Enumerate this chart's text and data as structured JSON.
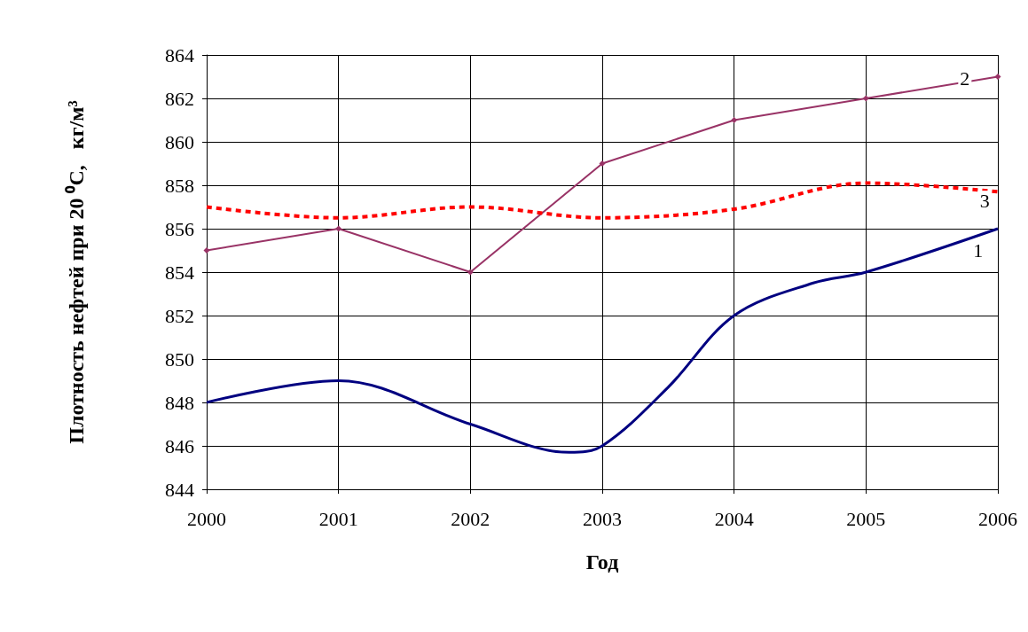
{
  "chart_data": {
    "type": "line",
    "xlabel": "Год",
    "ylabel": "Плотность нефтей при 20 ⁰С,   кг/м³",
    "xlim": [
      2000,
      2006
    ],
    "xticks": [
      2000,
      2001,
      2002,
      2003,
      2004,
      2005,
      2006
    ],
    "ylim": [
      844,
      864
    ],
    "yticks": [
      844,
      846,
      848,
      850,
      852,
      854,
      856,
      858,
      860,
      862,
      864
    ],
    "grid": true,
    "series": [
      {
        "color": "#000080",
        "marker": "none",
        "line_style": "solid",
        "x": [
          2000,
          2001,
          2002,
          2002.75,
          2003,
          2003.5,
          2004,
          2004.6,
          2005,
          2006
        ],
        "values": [
          848,
          849,
          847,
          845.7,
          846,
          848.7,
          852,
          853.5,
          854,
          856
        ]
      },
      {
        "color": "#993366",
        "marker": "diamond",
        "line_style": "solid",
        "x": [
          2000,
          2001,
          2002,
          2003,
          2004,
          2005,
          2006
        ],
        "values": [
          855,
          856,
          854,
          859,
          861,
          862,
          863
        ]
      },
      {
        "color": "#ff0000",
        "marker": "none",
        "line_style": "dashed",
        "x": [
          2000,
          2001,
          2002,
          2003,
          2004,
          2005,
          2006
        ],
        "values": [
          857,
          856.5,
          857,
          856.5,
          856.9,
          858.1,
          857.7
        ]
      }
    ],
    "annotations": [
      {
        "text": "1",
        "x": 2005.85,
        "y": 855
      },
      {
        "text": "2",
        "x": 2005.75,
        "y": 862.9
      },
      {
        "text": "3",
        "x": 2005.9,
        "y": 857.3
      }
    ]
  }
}
